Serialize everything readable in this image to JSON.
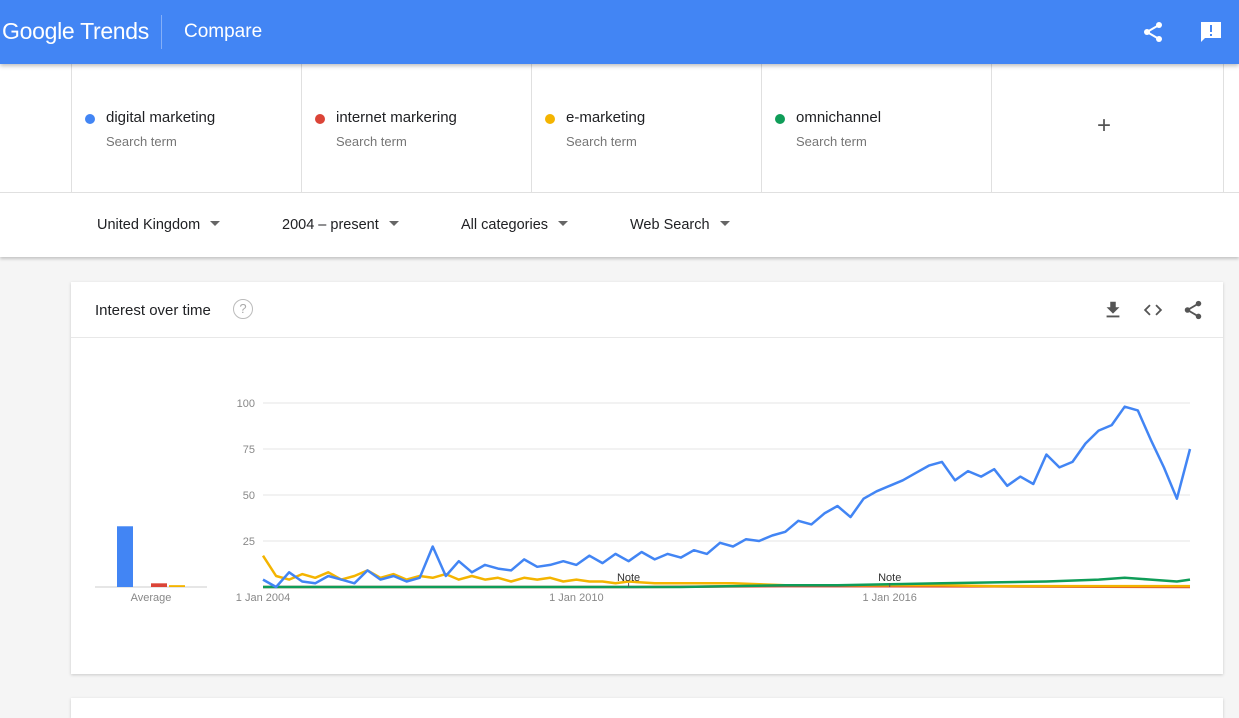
{
  "header": {
    "logo_google": "Google",
    "logo_trends": "Trends",
    "title": "Compare",
    "icons": [
      "share-icon",
      "feedback-icon"
    ]
  },
  "terms": [
    {
      "name": "digital marketing",
      "sub": "Search term",
      "color": "#4285f4"
    },
    {
      "name": "internet markering",
      "sub": "Search term",
      "color": "#db4437"
    },
    {
      "name": "e-marketing",
      "sub": "Search term",
      "color": "#f4b400"
    },
    {
      "name": "omnichannel",
      "sub": "Search term",
      "color": "#0f9d58"
    }
  ],
  "add_term": "+",
  "filters": {
    "region": "United Kingdom",
    "time": "2004 – present",
    "category": "All categories",
    "search_type": "Web Search"
  },
  "card": {
    "title": "Interest over time",
    "help": "?",
    "icons": [
      "download-icon",
      "embed-icon",
      "share-icon"
    ]
  },
  "chart_data": {
    "type": "line",
    "y_ticks": [
      25,
      50,
      75,
      100
    ],
    "ylim": [
      0,
      100
    ],
    "x_ticks": [
      {
        "label": "1 Jan 2004",
        "value": 2004
      },
      {
        "label": "1 Jan 2010",
        "value": 2010
      },
      {
        "label": "1 Jan 2016",
        "value": 2016
      }
    ],
    "xlim": [
      2004,
      2021.75
    ],
    "notes": [
      {
        "label": "Note",
        "value": 2011
      },
      {
        "label": "Note",
        "value": 2016
      }
    ],
    "average_label": "Average",
    "averages": [
      33,
      2,
      1,
      0
    ],
    "series": [
      {
        "name": "digital marketing",
        "color": "#4285f4",
        "points": [
          [
            2004,
            4
          ],
          [
            2004.25,
            0
          ],
          [
            2004.5,
            8
          ],
          [
            2004.75,
            3
          ],
          [
            2005,
            2
          ],
          [
            2005.25,
            6
          ],
          [
            2005.5,
            4
          ],
          [
            2005.75,
            2
          ],
          [
            2006,
            9
          ],
          [
            2006.25,
            4
          ],
          [
            2006.5,
            6
          ],
          [
            2006.75,
            3
          ],
          [
            2007,
            5
          ],
          [
            2007.25,
            22
          ],
          [
            2007.5,
            6
          ],
          [
            2007.75,
            14
          ],
          [
            2008,
            8
          ],
          [
            2008.25,
            12
          ],
          [
            2008.5,
            10
          ],
          [
            2008.75,
            9
          ],
          [
            2009,
            15
          ],
          [
            2009.25,
            11
          ],
          [
            2009.5,
            12
          ],
          [
            2009.75,
            14
          ],
          [
            2010,
            12
          ],
          [
            2010.25,
            17
          ],
          [
            2010.5,
            13
          ],
          [
            2010.75,
            18
          ],
          [
            2011,
            14
          ],
          [
            2011.25,
            19
          ],
          [
            2011.5,
            15
          ],
          [
            2011.75,
            18
          ],
          [
            2012,
            16
          ],
          [
            2012.25,
            20
          ],
          [
            2012.5,
            18
          ],
          [
            2012.75,
            24
          ],
          [
            2013,
            22
          ],
          [
            2013.25,
            26
          ],
          [
            2013.5,
            25
          ],
          [
            2013.75,
            28
          ],
          [
            2014,
            30
          ],
          [
            2014.25,
            36
          ],
          [
            2014.5,
            34
          ],
          [
            2014.75,
            40
          ],
          [
            2015,
            44
          ],
          [
            2015.25,
            38
          ],
          [
            2015.5,
            48
          ],
          [
            2015.75,
            52
          ],
          [
            2016,
            55
          ],
          [
            2016.25,
            58
          ],
          [
            2016.5,
            62
          ],
          [
            2016.75,
            66
          ],
          [
            2017,
            68
          ],
          [
            2017.25,
            58
          ],
          [
            2017.5,
            63
          ],
          [
            2017.75,
            60
          ],
          [
            2018,
            64
          ],
          [
            2018.25,
            55
          ],
          [
            2018.5,
            60
          ],
          [
            2018.75,
            56
          ],
          [
            2019,
            72
          ],
          [
            2019.25,
            65
          ],
          [
            2019.5,
            68
          ],
          [
            2019.75,
            78
          ],
          [
            2020,
            85
          ],
          [
            2020.25,
            88
          ],
          [
            2020.5,
            98
          ],
          [
            2020.75,
            96
          ],
          [
            2021,
            80
          ],
          [
            2021.25,
            65
          ],
          [
            2021.5,
            48
          ],
          [
            2021.75,
            75
          ]
        ]
      },
      {
        "name": "internet markering",
        "color": "#db4437",
        "points": [
          [
            2004,
            0
          ],
          [
            2011,
            0
          ],
          [
            2014,
            0.5
          ],
          [
            2018,
            0.3
          ],
          [
            2021.75,
            0
          ]
        ]
      },
      {
        "name": "e-marketing",
        "color": "#f4b400",
        "points": [
          [
            2004,
            17
          ],
          [
            2004.25,
            6
          ],
          [
            2004.5,
            4
          ],
          [
            2004.75,
            7
          ],
          [
            2005,
            5
          ],
          [
            2005.25,
            8
          ],
          [
            2005.5,
            4
          ],
          [
            2005.75,
            6
          ],
          [
            2006,
            9
          ],
          [
            2006.25,
            5
          ],
          [
            2006.5,
            7
          ],
          [
            2006.75,
            4
          ],
          [
            2007,
            6
          ],
          [
            2007.25,
            5
          ],
          [
            2007.5,
            7
          ],
          [
            2007.75,
            4
          ],
          [
            2008,
            6
          ],
          [
            2008.25,
            4
          ],
          [
            2008.5,
            5
          ],
          [
            2008.75,
            3
          ],
          [
            2009,
            5
          ],
          [
            2009.25,
            4
          ],
          [
            2009.5,
            5
          ],
          [
            2009.75,
            3
          ],
          [
            2010,
            4
          ],
          [
            2010.25,
            3
          ],
          [
            2010.5,
            3
          ],
          [
            2010.75,
            2
          ],
          [
            2011,
            3
          ],
          [
            2011.5,
            2
          ],
          [
            2012,
            2
          ],
          [
            2012.5,
            2
          ],
          [
            2013,
            2
          ],
          [
            2014,
            1
          ],
          [
            2015,
            1
          ],
          [
            2016,
            1
          ],
          [
            2017,
            1
          ],
          [
            2018,
            0.5
          ],
          [
            2019,
            0.5
          ],
          [
            2020,
            0.5
          ],
          [
            2021,
            0.5
          ],
          [
            2021.75,
            0.5
          ]
        ]
      },
      {
        "name": "omnichannel",
        "color": "#0f9d58",
        "points": [
          [
            2004,
            0
          ],
          [
            2010,
            0
          ],
          [
            2012,
            0
          ],
          [
            2013,
            0.5
          ],
          [
            2014,
            1
          ],
          [
            2015,
            1
          ],
          [
            2016,
            1.5
          ],
          [
            2017,
            2
          ],
          [
            2018,
            2.5
          ],
          [
            2019,
            3
          ],
          [
            2020,
            4
          ],
          [
            2020.5,
            5
          ],
          [
            2021,
            4
          ],
          [
            2021.5,
            3
          ],
          [
            2021.75,
            4
          ]
        ]
      }
    ]
  }
}
